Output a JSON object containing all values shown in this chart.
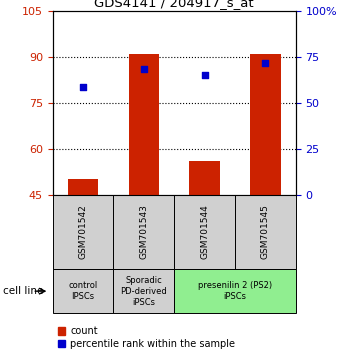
{
  "title": "GDS4141 / 204917_s_at",
  "samples": [
    "GSM701542",
    "GSM701543",
    "GSM701544",
    "GSM701545"
  ],
  "bar_values": [
    50,
    91,
    56,
    91
  ],
  "bar_base": 45,
  "dot_values": [
    80,
    86,
    84,
    88
  ],
  "left_ylim": [
    45,
    105
  ],
  "right_ylim": [
    0,
    100
  ],
  "left_yticks": [
    45,
    60,
    75,
    90,
    105
  ],
  "right_yticks": [
    0,
    25,
    50,
    75,
    100
  ],
  "right_yticklabels": [
    "0",
    "25",
    "50",
    "75",
    "100%"
  ],
  "bar_color": "#cc2200",
  "dot_color": "#0000cc",
  "dotted_lines": [
    60,
    75,
    90
  ],
  "groups": [
    {
      "label": "control\nIPSCs",
      "start": 0,
      "end": 1,
      "color": "#d0d0d0"
    },
    {
      "label": "Sporadic\nPD-derived\niPSCs",
      "start": 1,
      "end": 2,
      "color": "#d0d0d0"
    },
    {
      "label": "presenilin 2 (PS2)\niPSCs",
      "start": 2,
      "end": 4,
      "color": "#90ee90"
    }
  ],
  "cell_line_label": "cell line",
  "legend_count_label": "count",
  "legend_percentile_label": "percentile rank within the sample",
  "left_axis_color": "#cc2200",
  "right_axis_color": "#0000cc",
  "bar_width": 0.5
}
